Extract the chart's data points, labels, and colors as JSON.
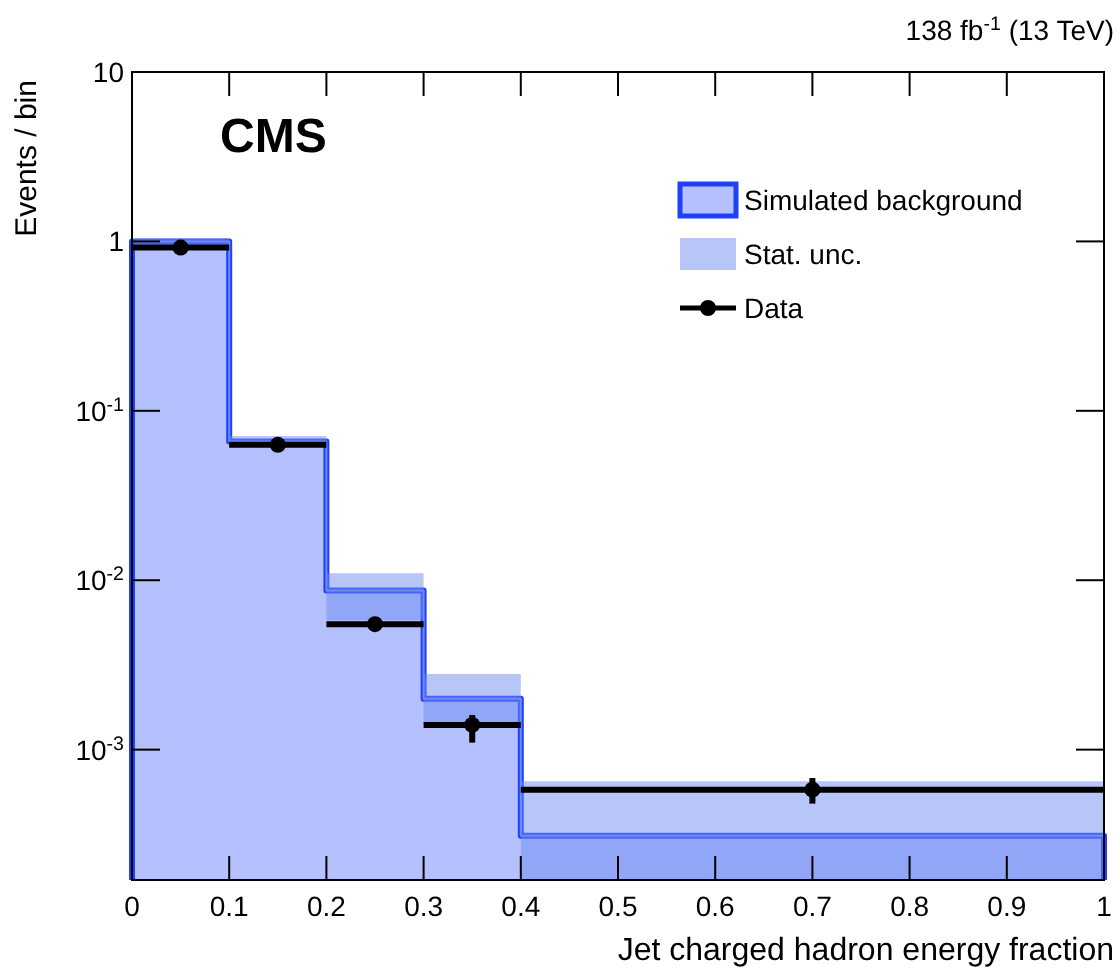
{
  "chart_data": {
    "type": "histogram",
    "title": "CMS",
    "annotations": [
      "138 fb$^{-1}$ (13 TeV)"
    ],
    "xlabel": "Jet charged hadron energy fraction",
    "ylabel": "Events / bin",
    "bins": [
      0,
      0.1,
      0.2,
      0.3,
      0.4,
      1
    ],
    "series": [
      {
        "name": "Simulated background",
        "type": "histogram",
        "color": "#1f3fff",
        "values": [
          1.0,
          0.066,
          0.0087,
          0.002,
          0.00031
        ]
      },
      {
        "name": "Stat. unc.",
        "type": "line",
        "color": "#6f8cf0",
        "x": [
          0,
          0.1,
          0.1,
          0.2,
          0.2,
          0.3,
          0.3,
          0.4,
          0.4,
          1
        ],
        "values": [
          1.0,
          1.0,
          0.066,
          0.066,
          0.0087,
          0.0087,
          0.002,
          0.002,
          0.00031,
          0.00031
        ],
        "lower": [
          0.96,
          0.96,
          0.061,
          0.061,
          0.0058,
          0.0058,
          0.0014,
          0.0014,
          0.00017,
          0.00017
        ],
        "upper": [
          1.04,
          1.04,
          0.071,
          0.071,
          0.011,
          0.011,
          0.0028,
          0.0028,
          0.00065,
          0.00065
        ]
      },
      {
        "name": "Data",
        "type": "scatter",
        "color": "#000000",
        "marker": "circle",
        "x": [
          0.05,
          0.15,
          0.25,
          0.35,
          0.7
        ],
        "values": [
          0.92,
          0.063,
          0.0055,
          0.0014,
          0.00058
        ],
        "errors": [
          null,
          null,
          null,
          [
            0.0011,
            0.0016
          ],
          [
            0.00048,
            0.00068
          ]
        ],
        "xerrors": [
          0.05,
          0.05,
          0.05,
          0.05,
          0.3
        ]
      }
    ],
    "log": "y",
    "xlim": [
      0,
      1
    ],
    "ylim": [
      0.00017,
      10
    ],
    "xticks": [
      0,
      0.1,
      0.2,
      0.3,
      0.4,
      0.5,
      0.6,
      0.7,
      0.8,
      0.9,
      1
    ],
    "yticks": [
      {
        "value": 0.001,
        "label": "10$^{-3}$"
      },
      {
        "value": 0.01,
        "label": "10$^{-2}$"
      },
      {
        "value": 0.1,
        "label": "10$^{-1}$"
      },
      1,
      10
    ],
    "grid": false,
    "legend": "top right"
  }
}
